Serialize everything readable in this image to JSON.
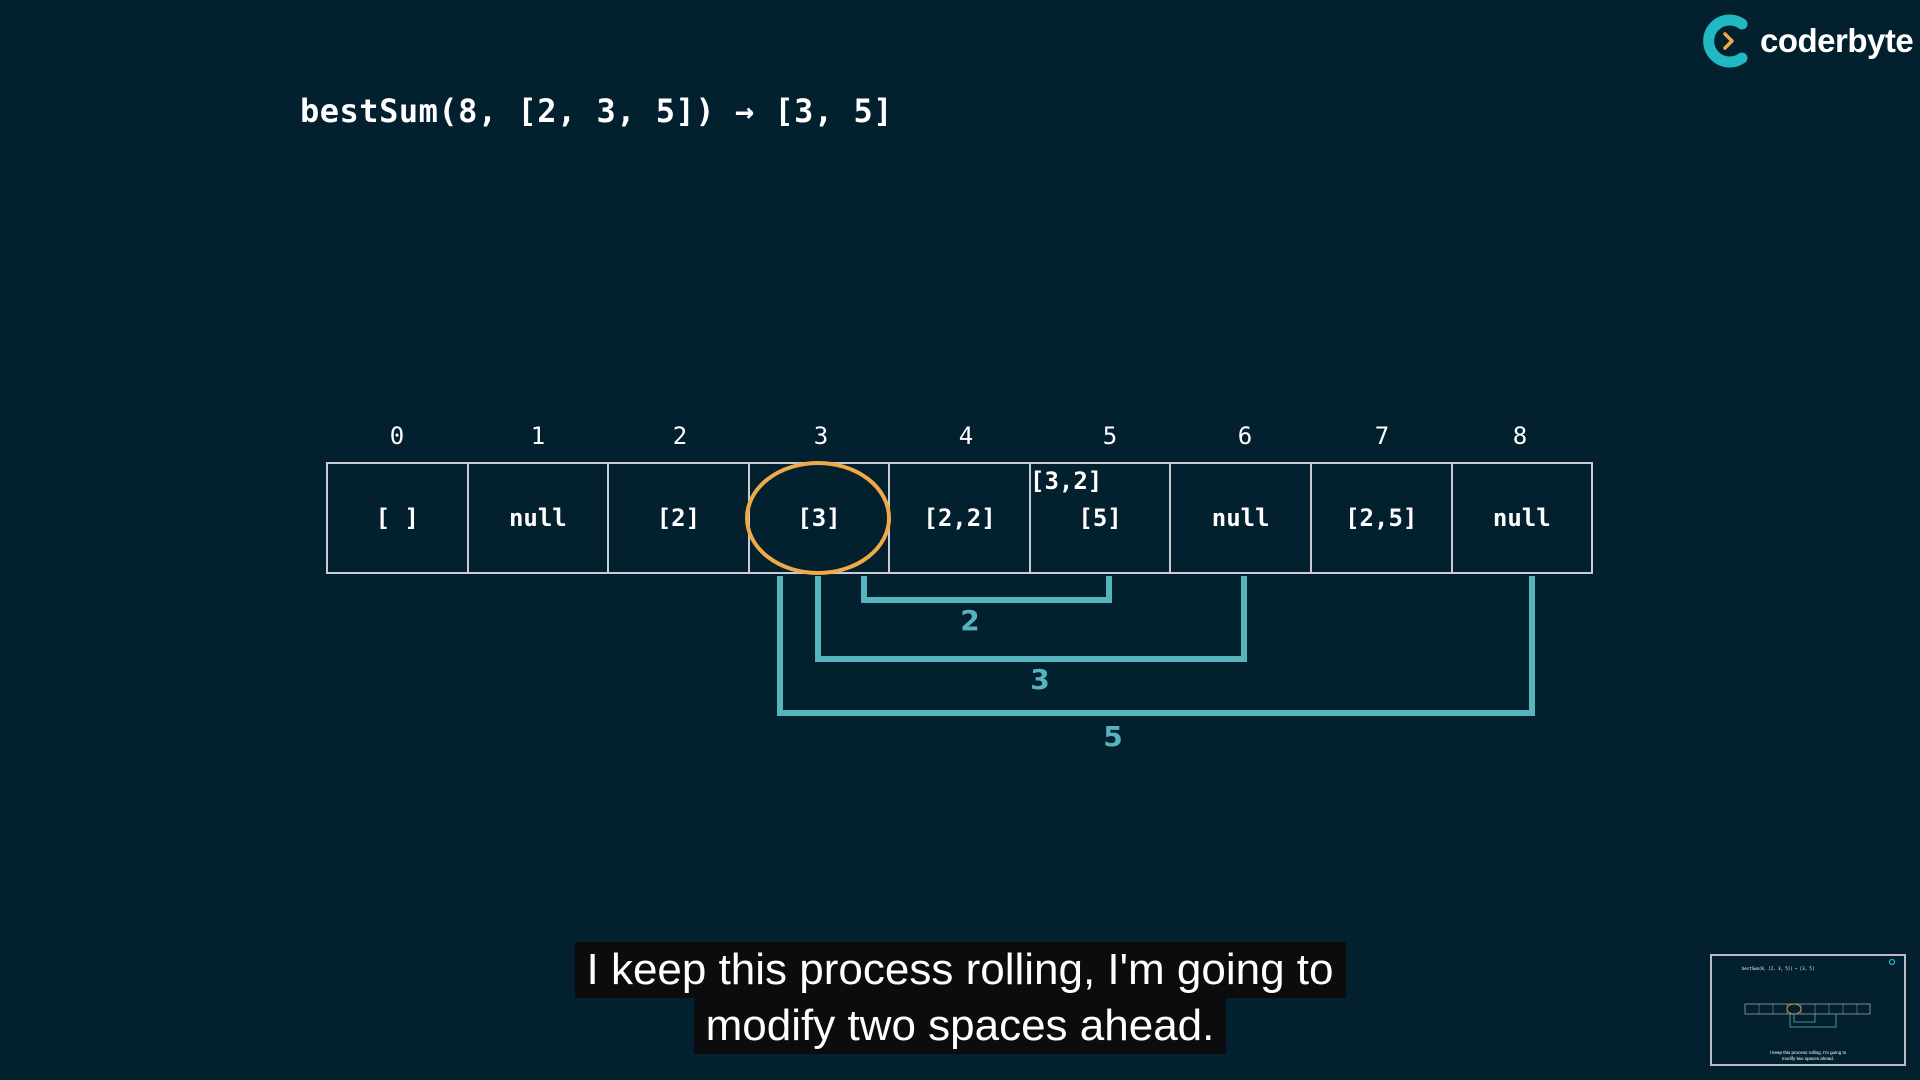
{
  "header": {
    "title": "bestSum(8, [2, 3, 5]) → [3, 5]"
  },
  "logo": {
    "text": "coderbyte"
  },
  "table": {
    "indices": [
      "0",
      "1",
      "2",
      "3",
      "4",
      "5",
      "6",
      "7",
      "8"
    ],
    "cells": [
      "[ ]",
      "null",
      "[2]",
      "[3]",
      "[2,2]",
      "[5]",
      "null",
      "[2,5]",
      "null"
    ],
    "cell5_note": "[3,2]",
    "highlighted_index": 3
  },
  "jumps": [
    {
      "label": "2",
      "from": 3,
      "to": 5
    },
    {
      "label": "3",
      "from": 3,
      "to": 6
    },
    {
      "label": "5",
      "from": 3,
      "to": 8
    }
  ],
  "subtitle": {
    "line1": "I keep this process rolling, I'm going to",
    "line2": "modify two spaces ahead."
  },
  "thumbnail": {
    "title": "bestSum(8, [2, 3, 5]) → [3, 5]",
    "caption_line1": "I keep this process rolling, I'm going to",
    "caption_line2": "modify two spaces ahead."
  },
  "colors": {
    "background": "#03202e",
    "highlight": "#f0a848",
    "arrow": "#55b4be",
    "cell_border": "#c8ccd2",
    "logo_accent": "#1fb8c3"
  }
}
